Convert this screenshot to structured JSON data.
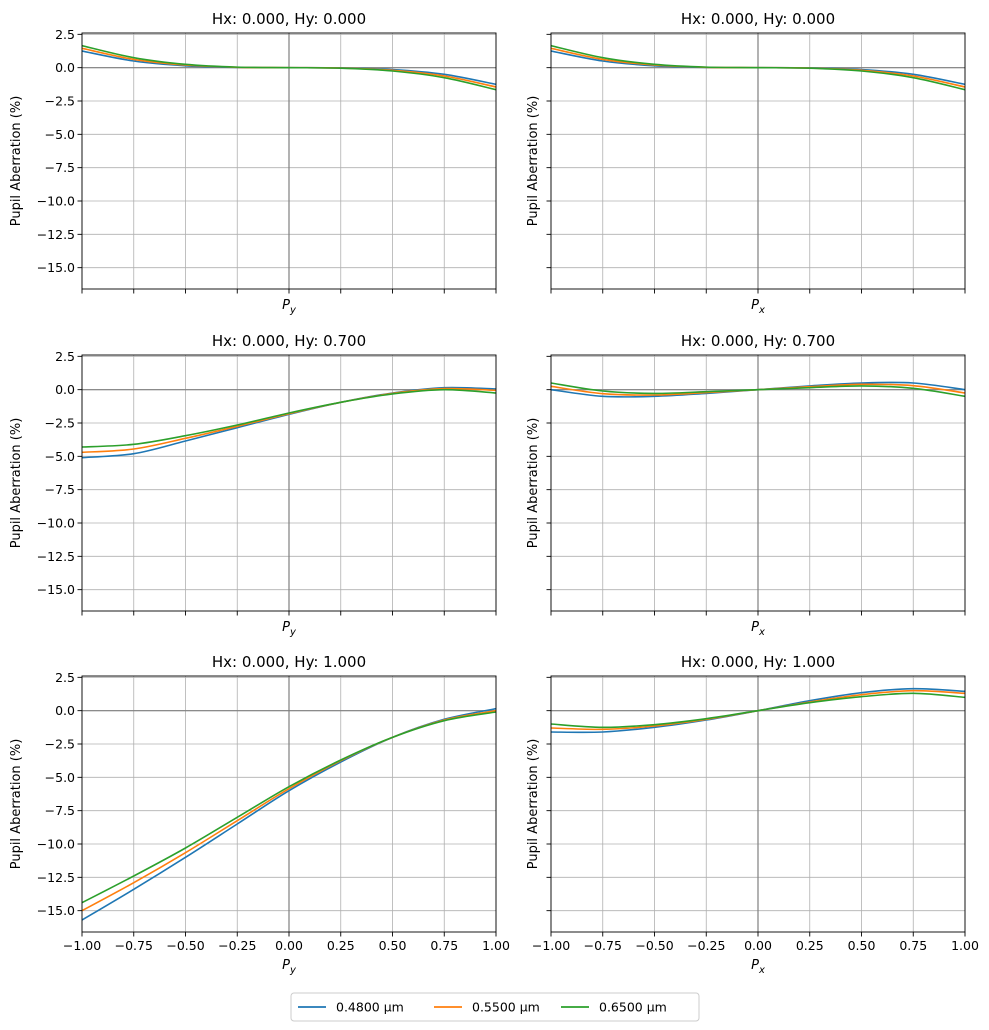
{
  "chart_data": [
    {
      "type": "line",
      "title": "Hx: 0.000, Hy: 0.000",
      "xlabel": "P_y",
      "xlabel_main": "P",
      "xlabel_sub": "y",
      "ylabel": "Pupil Aberration (%)",
      "xlim": [
        -1.0,
        1.0
      ],
      "ylim": [
        -16.6,
        2.6
      ],
      "grid": true,
      "x": [
        -1.0,
        -0.75,
        -0.5,
        -0.25,
        0.0,
        0.25,
        0.5,
        0.75,
        1.0
      ],
      "series": [
        {
          "name": "0.4800 µm",
          "color": "#1f77b4",
          "values": [
            1.25,
            0.5,
            0.14,
            0.02,
            0.0,
            -0.02,
            -0.14,
            -0.5,
            -1.25
          ]
        },
        {
          "name": "0.5500 µm",
          "color": "#ff7f0e",
          "values": [
            1.45,
            0.62,
            0.2,
            0.03,
            0.0,
            -0.03,
            -0.2,
            -0.62,
            -1.45
          ]
        },
        {
          "name": "0.6500 µm",
          "color": "#2ca02c",
          "values": [
            1.65,
            0.75,
            0.25,
            0.04,
            0.0,
            -0.04,
            -0.25,
            -0.75,
            -1.65
          ]
        }
      ]
    },
    {
      "type": "line",
      "title": "Hx: 0.000, Hy: 0.000",
      "xlabel": "P_x",
      "xlabel_main": "P",
      "xlabel_sub": "x",
      "ylabel": "Pupil Aberration (%)",
      "xlim": [
        -1.0,
        1.0
      ],
      "ylim": [
        -16.6,
        2.6
      ],
      "grid": true,
      "x": [
        -1.0,
        -0.75,
        -0.5,
        -0.25,
        0.0,
        0.25,
        0.5,
        0.75,
        1.0
      ],
      "series": [
        {
          "name": "0.4800 µm",
          "color": "#1f77b4",
          "values": [
            1.25,
            0.5,
            0.14,
            0.02,
            0.0,
            -0.02,
            -0.14,
            -0.5,
            -1.25
          ]
        },
        {
          "name": "0.5500 µm",
          "color": "#ff7f0e",
          "values": [
            1.45,
            0.62,
            0.2,
            0.03,
            0.0,
            -0.03,
            -0.2,
            -0.62,
            -1.45
          ]
        },
        {
          "name": "0.6500 µm",
          "color": "#2ca02c",
          "values": [
            1.65,
            0.75,
            0.25,
            0.04,
            0.0,
            -0.04,
            -0.25,
            -0.75,
            -1.65
          ]
        }
      ]
    },
    {
      "type": "line",
      "title": "Hx: 0.000, Hy: 0.700",
      "xlabel": "P_y",
      "xlabel_main": "P",
      "xlabel_sub": "y",
      "ylabel": "Pupil Aberration (%)",
      "xlim": [
        -1.0,
        1.0
      ],
      "ylim": [
        -16.6,
        2.6
      ],
      "grid": true,
      "x": [
        -1.0,
        -0.75,
        -0.5,
        -0.25,
        0.0,
        0.25,
        0.5,
        0.75,
        1.0
      ],
      "series": [
        {
          "name": "0.4800 µm",
          "color": "#1f77b4",
          "values": [
            -5.1,
            -4.8,
            -3.85,
            -2.85,
            -1.85,
            -0.95,
            -0.25,
            0.15,
            0.05
          ]
        },
        {
          "name": "0.5500 µm",
          "color": "#ff7f0e",
          "values": [
            -4.7,
            -4.45,
            -3.65,
            -2.75,
            -1.8,
            -0.95,
            -0.28,
            0.08,
            -0.05
          ]
        },
        {
          "name": "0.6500 µm",
          "color": "#2ca02c",
          "values": [
            -4.3,
            -4.1,
            -3.45,
            -2.65,
            -1.75,
            -0.95,
            -0.32,
            0.0,
            -0.25
          ]
        }
      ]
    },
    {
      "type": "line",
      "title": "Hx: 0.000, Hy: 0.700",
      "xlabel": "P_x",
      "xlabel_main": "P",
      "xlabel_sub": "x",
      "ylabel": "Pupil Aberration (%)",
      "xlim": [
        -1.0,
        1.0
      ],
      "ylim": [
        -16.6,
        2.6
      ],
      "grid": true,
      "x": [
        -1.0,
        -0.75,
        -0.5,
        -0.25,
        0.0,
        0.25,
        0.5,
        0.75,
        1.0
      ],
      "series": [
        {
          "name": "0.4800 µm",
          "color": "#1f77b4",
          "values": [
            0.0,
            -0.5,
            -0.5,
            -0.28,
            0.0,
            0.28,
            0.5,
            0.5,
            0.0
          ]
        },
        {
          "name": "0.5500 µm",
          "color": "#ff7f0e",
          "values": [
            0.25,
            -0.3,
            -0.4,
            -0.22,
            0.0,
            0.22,
            0.4,
            0.3,
            -0.25
          ]
        },
        {
          "name": "0.6500 µm",
          "color": "#2ca02c",
          "values": [
            0.5,
            -0.1,
            -0.28,
            -0.15,
            0.0,
            0.15,
            0.28,
            0.1,
            -0.5
          ]
        }
      ]
    },
    {
      "type": "line",
      "title": "Hx: 0.000, Hy: 1.000",
      "xlabel": "P_y",
      "xlabel_main": "P",
      "xlabel_sub": "y",
      "ylabel": "Pupil Aberration (%)",
      "xlim": [
        -1.0,
        1.0
      ],
      "ylim": [
        -16.6,
        2.6
      ],
      "grid": true,
      "xticks": [
        -1.0,
        -0.75,
        -0.5,
        -0.25,
        0.0,
        0.25,
        0.5,
        0.75,
        1.0
      ],
      "xticklabels": [
        "−1.00",
        "−0.75",
        "−0.50",
        "−0.25",
        "0.00",
        "0.25",
        "0.50",
        "0.75",
        "1.00"
      ],
      "x": [
        -1.0,
        -0.75,
        -0.5,
        -0.25,
        0.0,
        0.25,
        0.5,
        0.75,
        1.0
      ],
      "series": [
        {
          "name": "0.4800 µm",
          "color": "#1f77b4",
          "values": [
            -15.7,
            -13.4,
            -11.0,
            -8.5,
            -6.0,
            -3.85,
            -2.0,
            -0.65,
            0.15
          ]
        },
        {
          "name": "0.5500 µm",
          "color": "#ff7f0e",
          "values": [
            -15.0,
            -12.9,
            -10.65,
            -8.25,
            -5.85,
            -3.75,
            -2.0,
            -0.7,
            0.0
          ]
        },
        {
          "name": "0.6500 µm",
          "color": "#2ca02c",
          "values": [
            -14.4,
            -12.4,
            -10.3,
            -8.0,
            -5.7,
            -3.7,
            -2.0,
            -0.75,
            -0.1
          ]
        }
      ]
    },
    {
      "type": "line",
      "title": "Hx: 0.000, Hy: 1.000",
      "xlabel": "P_x",
      "xlabel_main": "P",
      "xlabel_sub": "x",
      "ylabel": "Pupil Aberration (%)",
      "xlim": [
        -1.0,
        1.0
      ],
      "ylim": [
        -16.6,
        2.6
      ],
      "grid": true,
      "xticks": [
        -1.0,
        -0.75,
        -0.5,
        -0.25,
        0.0,
        0.25,
        0.5,
        0.75,
        1.0
      ],
      "xticklabels": [
        "−1.00",
        "−0.75",
        "−0.50",
        "−0.25",
        "0.00",
        "0.25",
        "0.50",
        "0.75",
        "1.00"
      ],
      "x": [
        -1.0,
        -0.75,
        -0.5,
        -0.25,
        0.0,
        0.25,
        0.5,
        0.75,
        1.0
      ],
      "series": [
        {
          "name": "0.4800 µm",
          "color": "#1f77b4",
          "values": [
            -1.6,
            -1.6,
            -1.25,
            -0.7,
            0.0,
            0.75,
            1.35,
            1.65,
            1.45
          ]
        },
        {
          "name": "0.5500 µm",
          "color": "#ff7f0e",
          "values": [
            -1.3,
            -1.4,
            -1.15,
            -0.65,
            0.0,
            0.65,
            1.2,
            1.5,
            1.3
          ]
        },
        {
          "name": "0.6500 µm",
          "color": "#2ca02c",
          "values": [
            -1.0,
            -1.25,
            -1.05,
            -0.6,
            0.0,
            0.6,
            1.05,
            1.3,
            1.0
          ]
        }
      ]
    }
  ],
  "yticklabels": [
    "2.5",
    "0.0",
    "−2.5",
    "−5.0",
    "−7.5",
    "−10.0",
    "−12.5",
    "−15.0"
  ],
  "yticks": [
    2.5,
    0.0,
    -2.5,
    -5.0,
    -7.5,
    -10.0,
    -12.5,
    -15.0
  ],
  "legend": {
    "placement": "bottom-center",
    "entries": [
      {
        "label": "0.4800 µm",
        "color": "#1f77b4"
      },
      {
        "label": "0.5500 µm",
        "color": "#ff7f0e"
      },
      {
        "label": "0.6500 µm",
        "color": "#2ca02c"
      }
    ]
  }
}
